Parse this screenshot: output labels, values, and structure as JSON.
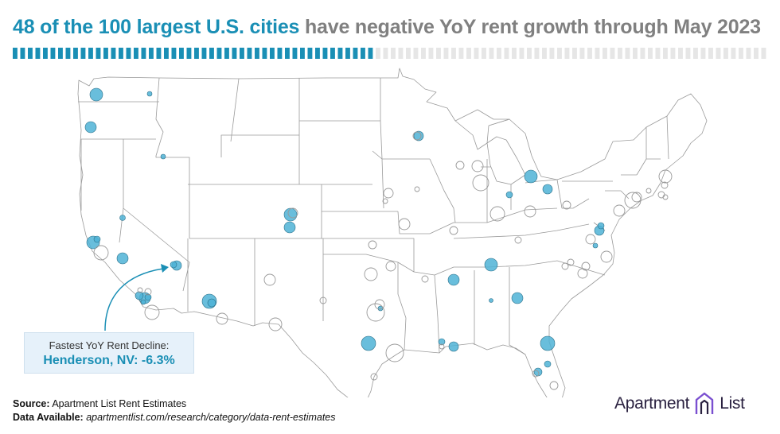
{
  "title": {
    "highlight": "48 of the 100 largest U.S. cities",
    "rest": "have negative YoY rent growth through May 2023"
  },
  "progress": {
    "negative": 48,
    "total": 100
  },
  "colors": {
    "accent": "#1a8fb5",
    "negative_fill": "#4fb3d6",
    "positive_stroke": "#999999",
    "progress_empty": "#e6e6e6",
    "state_stroke": "#9a9a9a",
    "callout_bg": "#e6f1fa",
    "logo_text": "#2a2140",
    "logo_mark": "#7a4fd0"
  },
  "callout": {
    "label": "Fastest YoY Rent Decline:",
    "value": "Henderson, NV: -6.3%"
  },
  "source": {
    "source_label": "Source:",
    "source_text": "Apartment List Rent Estimates",
    "data_label": "Data Available:",
    "data_text": "apartmentlist.com/research/category/data-rent-estimates"
  },
  "logo": {
    "left": "Apartment",
    "right": "List",
    "icon": "apartment-list-logo-icon"
  }
}
